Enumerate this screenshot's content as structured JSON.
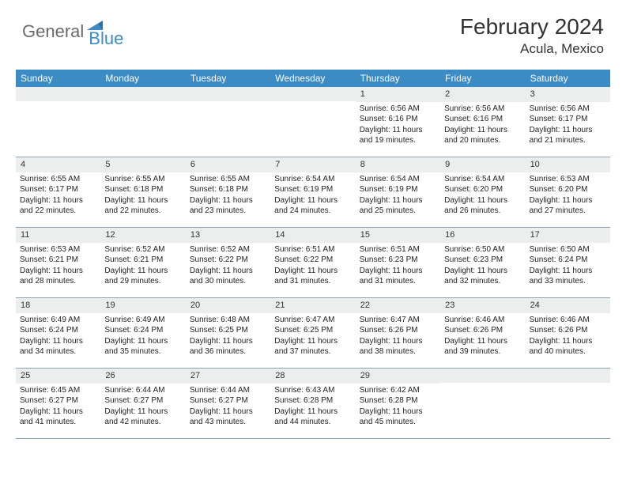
{
  "logo": {
    "text_general": "General",
    "text_blue": "Blue"
  },
  "title": "February 2024",
  "location": "Acula, Mexico",
  "colors": {
    "header_bar": "#3b8bc4",
    "day_band": "#eceded",
    "week_border": "#8aa5b8",
    "logo_gray": "#6b6b6b",
    "logo_blue": "#3b8bc4"
  },
  "weekdays": [
    "Sunday",
    "Monday",
    "Tuesday",
    "Wednesday",
    "Thursday",
    "Friday",
    "Saturday"
  ],
  "weeks": [
    [
      {
        "day": "",
        "sunrise": "",
        "sunset": "",
        "daylight": ""
      },
      {
        "day": "",
        "sunrise": "",
        "sunset": "",
        "daylight": ""
      },
      {
        "day": "",
        "sunrise": "",
        "sunset": "",
        "daylight": ""
      },
      {
        "day": "",
        "sunrise": "",
        "sunset": "",
        "daylight": ""
      },
      {
        "day": "1",
        "sunrise": "Sunrise: 6:56 AM",
        "sunset": "Sunset: 6:16 PM",
        "daylight": "Daylight: 11 hours and 19 minutes."
      },
      {
        "day": "2",
        "sunrise": "Sunrise: 6:56 AM",
        "sunset": "Sunset: 6:16 PM",
        "daylight": "Daylight: 11 hours and 20 minutes."
      },
      {
        "day": "3",
        "sunrise": "Sunrise: 6:56 AM",
        "sunset": "Sunset: 6:17 PM",
        "daylight": "Daylight: 11 hours and 21 minutes."
      }
    ],
    [
      {
        "day": "4",
        "sunrise": "Sunrise: 6:55 AM",
        "sunset": "Sunset: 6:17 PM",
        "daylight": "Daylight: 11 hours and 22 minutes."
      },
      {
        "day": "5",
        "sunrise": "Sunrise: 6:55 AM",
        "sunset": "Sunset: 6:18 PM",
        "daylight": "Daylight: 11 hours and 22 minutes."
      },
      {
        "day": "6",
        "sunrise": "Sunrise: 6:55 AM",
        "sunset": "Sunset: 6:18 PM",
        "daylight": "Daylight: 11 hours and 23 minutes."
      },
      {
        "day": "7",
        "sunrise": "Sunrise: 6:54 AM",
        "sunset": "Sunset: 6:19 PM",
        "daylight": "Daylight: 11 hours and 24 minutes."
      },
      {
        "day": "8",
        "sunrise": "Sunrise: 6:54 AM",
        "sunset": "Sunset: 6:19 PM",
        "daylight": "Daylight: 11 hours and 25 minutes."
      },
      {
        "day": "9",
        "sunrise": "Sunrise: 6:54 AM",
        "sunset": "Sunset: 6:20 PM",
        "daylight": "Daylight: 11 hours and 26 minutes."
      },
      {
        "day": "10",
        "sunrise": "Sunrise: 6:53 AM",
        "sunset": "Sunset: 6:20 PM",
        "daylight": "Daylight: 11 hours and 27 minutes."
      }
    ],
    [
      {
        "day": "11",
        "sunrise": "Sunrise: 6:53 AM",
        "sunset": "Sunset: 6:21 PM",
        "daylight": "Daylight: 11 hours and 28 minutes."
      },
      {
        "day": "12",
        "sunrise": "Sunrise: 6:52 AM",
        "sunset": "Sunset: 6:21 PM",
        "daylight": "Daylight: 11 hours and 29 minutes."
      },
      {
        "day": "13",
        "sunrise": "Sunrise: 6:52 AM",
        "sunset": "Sunset: 6:22 PM",
        "daylight": "Daylight: 11 hours and 30 minutes."
      },
      {
        "day": "14",
        "sunrise": "Sunrise: 6:51 AM",
        "sunset": "Sunset: 6:22 PM",
        "daylight": "Daylight: 11 hours and 31 minutes."
      },
      {
        "day": "15",
        "sunrise": "Sunrise: 6:51 AM",
        "sunset": "Sunset: 6:23 PM",
        "daylight": "Daylight: 11 hours and 31 minutes."
      },
      {
        "day": "16",
        "sunrise": "Sunrise: 6:50 AM",
        "sunset": "Sunset: 6:23 PM",
        "daylight": "Daylight: 11 hours and 32 minutes."
      },
      {
        "day": "17",
        "sunrise": "Sunrise: 6:50 AM",
        "sunset": "Sunset: 6:24 PM",
        "daylight": "Daylight: 11 hours and 33 minutes."
      }
    ],
    [
      {
        "day": "18",
        "sunrise": "Sunrise: 6:49 AM",
        "sunset": "Sunset: 6:24 PM",
        "daylight": "Daylight: 11 hours and 34 minutes."
      },
      {
        "day": "19",
        "sunrise": "Sunrise: 6:49 AM",
        "sunset": "Sunset: 6:24 PM",
        "daylight": "Daylight: 11 hours and 35 minutes."
      },
      {
        "day": "20",
        "sunrise": "Sunrise: 6:48 AM",
        "sunset": "Sunset: 6:25 PM",
        "daylight": "Daylight: 11 hours and 36 minutes."
      },
      {
        "day": "21",
        "sunrise": "Sunrise: 6:47 AM",
        "sunset": "Sunset: 6:25 PM",
        "daylight": "Daylight: 11 hours and 37 minutes."
      },
      {
        "day": "22",
        "sunrise": "Sunrise: 6:47 AM",
        "sunset": "Sunset: 6:26 PM",
        "daylight": "Daylight: 11 hours and 38 minutes."
      },
      {
        "day": "23",
        "sunrise": "Sunrise: 6:46 AM",
        "sunset": "Sunset: 6:26 PM",
        "daylight": "Daylight: 11 hours and 39 minutes."
      },
      {
        "day": "24",
        "sunrise": "Sunrise: 6:46 AM",
        "sunset": "Sunset: 6:26 PM",
        "daylight": "Daylight: 11 hours and 40 minutes."
      }
    ],
    [
      {
        "day": "25",
        "sunrise": "Sunrise: 6:45 AM",
        "sunset": "Sunset: 6:27 PM",
        "daylight": "Daylight: 11 hours and 41 minutes."
      },
      {
        "day": "26",
        "sunrise": "Sunrise: 6:44 AM",
        "sunset": "Sunset: 6:27 PM",
        "daylight": "Daylight: 11 hours and 42 minutes."
      },
      {
        "day": "27",
        "sunrise": "Sunrise: 6:44 AM",
        "sunset": "Sunset: 6:27 PM",
        "daylight": "Daylight: 11 hours and 43 minutes."
      },
      {
        "day": "28",
        "sunrise": "Sunrise: 6:43 AM",
        "sunset": "Sunset: 6:28 PM",
        "daylight": "Daylight: 11 hours and 44 minutes."
      },
      {
        "day": "29",
        "sunrise": "Sunrise: 6:42 AM",
        "sunset": "Sunset: 6:28 PM",
        "daylight": "Daylight: 11 hours and 45 minutes."
      },
      {
        "day": "",
        "sunrise": "",
        "sunset": "",
        "daylight": ""
      },
      {
        "day": "",
        "sunrise": "",
        "sunset": "",
        "daylight": ""
      }
    ]
  ]
}
